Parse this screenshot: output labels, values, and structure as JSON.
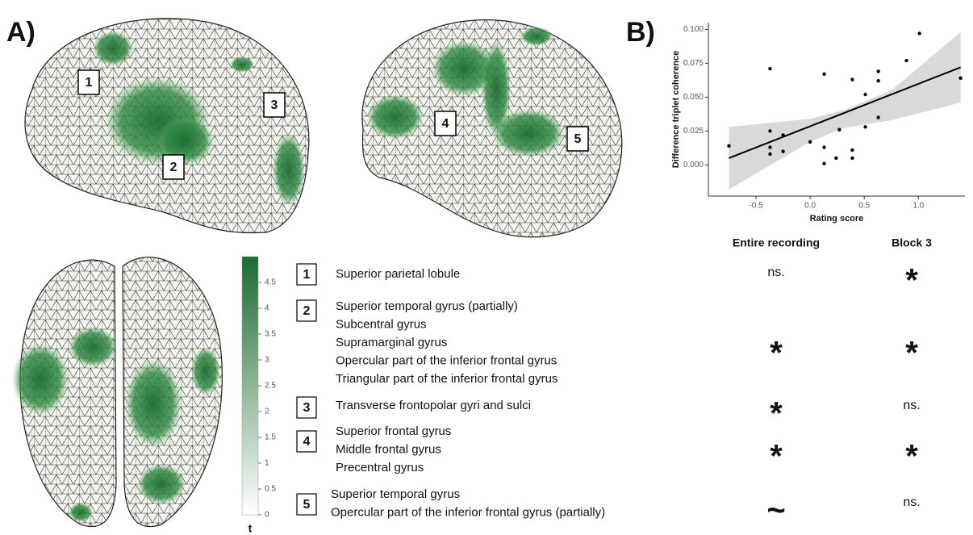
{
  "panel_labels": [
    "A)",
    "B)"
  ],
  "chart_data": {
    "type": "scatter",
    "xlabel": "Rating score",
    "ylabel": "Difference triplet coherence",
    "x": [
      -0.75,
      -0.37,
      -0.37,
      -0.37,
      -0.37,
      -0.25,
      -0.25,
      0.0,
      0.13,
      0.13,
      0.13,
      0.27,
      0.24,
      0.39,
      0.39,
      0.39,
      0.51,
      0.51,
      0.63,
      0.63,
      0.63,
      0.89,
      1.01,
      1.39
    ],
    "y": [
      0.014,
      0.071,
      0.025,
      0.013,
      0.008,
      0.022,
      0.01,
      0.017,
      0.067,
      0.013,
      0.001,
      0.026,
      0.005,
      0.063,
      0.011,
      0.005,
      0.052,
      0.028,
      0.069,
      0.062,
      0.035,
      0.077,
      0.097,
      0.064
    ],
    "color": "#000000",
    "fit": {
      "x": [
        -0.75,
        1.39
      ],
      "y": [
        0.005,
        0.072
      ],
      "color": "#000000"
    },
    "band": {
      "x": [
        -0.75,
        0.0,
        0.3,
        0.75,
        1.39
      ],
      "lower": [
        -0.018,
        0.017,
        0.027,
        0.033,
        0.046
      ],
      "upper": [
        0.028,
        0.034,
        0.04,
        0.055,
        0.098
      ],
      "color": "#d9d9d9"
    },
    "xlim": [
      -0.94,
      1.43
    ],
    "ylim": [
      -0.023,
      0.105
    ],
    "xticks": [
      -0.5,
      {
        "value": 0,
        "label": "0.0"
      },
      0.5,
      {
        "value": 1,
        "label": "1.0"
      }
    ],
    "yticks": [
      {
        "value": 0,
        "label": "0.000"
      },
      {
        "value": 0.025,
        "label": "0.025"
      },
      {
        "value": 0.05,
        "label": "0.050"
      },
      {
        "value": 0.075,
        "label": "0.075"
      },
      {
        "value": 0.1,
        "label": "0.100"
      }
    ],
    "grid": false
  },
  "colorbar": {
    "label": "t",
    "lim": [
      0,
      5
    ],
    "ticks": [
      0,
      0.5,
      1,
      1.5,
      2,
      2.5,
      3,
      3.5,
      4,
      4.5
    ],
    "colors": [
      "#ffffff",
      "#1b6b30"
    ]
  },
  "table": {
    "header": [
      "Entire recording",
      "Block 3"
    ],
    "rows": [
      {
        "number": "1",
        "lines": [
          "Superior parietal lobule"
        ],
        "cells": [
          "ns.",
          "*"
        ]
      },
      {
        "number": "2",
        "lines": [
          "Superior temporal gyrus (partially)",
          "Subcentral gyrus",
          "Supramarginal gyrus",
          "Opercular part of the inferior frontal gyrus",
          "Triangular part of the inferior frontal gyrus"
        ],
        "cells": [
          "*",
          "*"
        ]
      },
      {
        "number": "3",
        "lines": [
          "Transverse  frontopolar gyri and sulci"
        ],
        "cells": [
          "*",
          "ns."
        ]
      },
      {
        "number": "4",
        "lines": [
          "Superior frontal gyrus",
          "Middle frontal gyrus",
          "Precentral gyrus"
        ],
        "cells": [
          "*",
          "*"
        ]
      },
      {
        "number": "5",
        "lines": [
          "Superior temporal gyrus",
          "Opercular part of the inferior frontal gyrus (partially)"
        ],
        "cells": [
          "~",
          "ns."
        ]
      }
    ]
  }
}
